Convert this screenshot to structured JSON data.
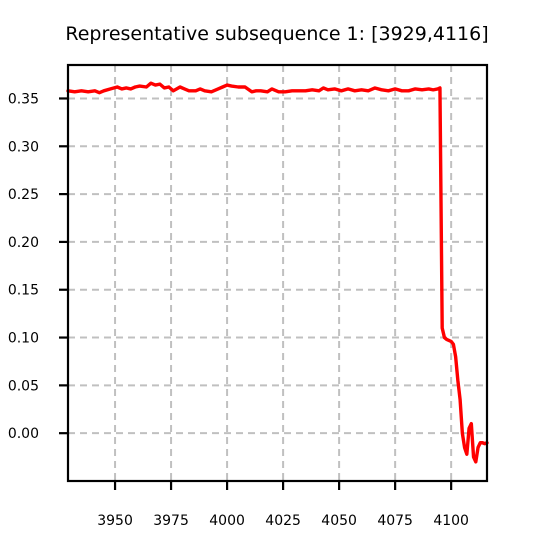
{
  "chart_data": {
    "type": "line",
    "title": "Representative subsequence 1: [3929,4116]",
    "xlabel": "",
    "ylabel": "",
    "xlim": [
      3929,
      4116
    ],
    "ylim": [
      -0.05,
      0.385
    ],
    "x_ticks": [
      3950,
      3975,
      4000,
      4025,
      4050,
      4075,
      4100
    ],
    "y_ticks": [
      0.0,
      0.05,
      0.1,
      0.15,
      0.2,
      0.25,
      0.3,
      0.35
    ],
    "x_tick_labels": [
      "3950",
      "3975",
      "4000",
      "4025",
      "4050",
      "4075",
      "4100"
    ],
    "y_tick_labels": [
      "0.00",
      "0.05",
      "0.10",
      "0.15",
      "0.20",
      "0.25",
      "0.30",
      "0.35"
    ],
    "grid": true,
    "line_color": "#ff0000",
    "grid_color": "#c0c0c0",
    "series": [
      {
        "x": [
          3929,
          3932,
          3935,
          3938,
          3941,
          3943,
          3945,
          3948,
          3951,
          3953,
          3955,
          3957,
          3959,
          3961,
          3964,
          3966,
          3968,
          3970,
          3972,
          3974,
          3976,
          3979,
          3981,
          3983,
          3986,
          3988,
          3990,
          3993,
          3996,
          3998,
          4000,
          4002,
          4005,
          4008,
          4011,
          4013,
          4015,
          4018,
          4020,
          4023,
          4026,
          4029,
          4032,
          4035,
          4038,
          4041,
          4043,
          4045,
          4048,
          4051,
          4054,
          4057,
          4060,
          4063,
          4066,
          4069,
          4072,
          4075,
          4078,
          4081,
          4084,
          4087,
          4090,
          4092,
          4094,
          4095,
          4096,
          4097,
          4098,
          4100,
          4101,
          4102,
          4103,
          4104,
          4105,
          4106,
          4107,
          4108,
          4109,
          4110,
          4111,
          4112,
          4113,
          4114,
          4115,
          4116
        ],
        "y": [
          0.358,
          0.357,
          0.358,
          0.357,
          0.358,
          0.356,
          0.358,
          0.36,
          0.362,
          0.36,
          0.361,
          0.36,
          0.362,
          0.363,
          0.362,
          0.366,
          0.364,
          0.365,
          0.361,
          0.362,
          0.358,
          0.362,
          0.36,
          0.358,
          0.358,
          0.36,
          0.358,
          0.357,
          0.36,
          0.362,
          0.364,
          0.363,
          0.362,
          0.362,
          0.357,
          0.358,
          0.358,
          0.357,
          0.36,
          0.357,
          0.357,
          0.358,
          0.358,
          0.358,
          0.359,
          0.358,
          0.361,
          0.359,
          0.36,
          0.358,
          0.36,
          0.358,
          0.359,
          0.358,
          0.361,
          0.359,
          0.358,
          0.36,
          0.358,
          0.358,
          0.36,
          0.359,
          0.36,
          0.359,
          0.36,
          0.361,
          0.11,
          0.1,
          0.098,
          0.096,
          0.093,
          0.08,
          0.055,
          0.035,
          0.0,
          -0.015,
          -0.022,
          0.005,
          0.01,
          -0.025,
          -0.03,
          -0.015,
          -0.01,
          -0.01,
          -0.011,
          -0.01
        ]
      }
    ]
  }
}
